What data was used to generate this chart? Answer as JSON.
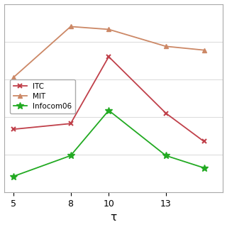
{
  "x": [
    5,
    8,
    10,
    13,
    15
  ],
  "ITC": [
    0.335,
    0.365,
    0.72,
    0.42,
    0.27
  ],
  "MIT": [
    0.61,
    0.88,
    0.865,
    0.775,
    0.755
  ],
  "Infocom06": [
    0.085,
    0.195,
    0.435,
    0.195,
    0.13
  ],
  "ITC_color": "#c0404a",
  "MIT_color": "#cc8866",
  "Infocom06_color": "#22aa22",
  "xlabel": "τ",
  "xticks": [
    5,
    8,
    10,
    13
  ],
  "ylim": [
    0.0,
    1.0
  ],
  "xlim": [
    4.5,
    16.0
  ],
  "background_color": "#ffffff",
  "grid_color": "#dddddd",
  "legend_labels": [
    "ITC",
    "MIT",
    "Infocom06"
  ]
}
